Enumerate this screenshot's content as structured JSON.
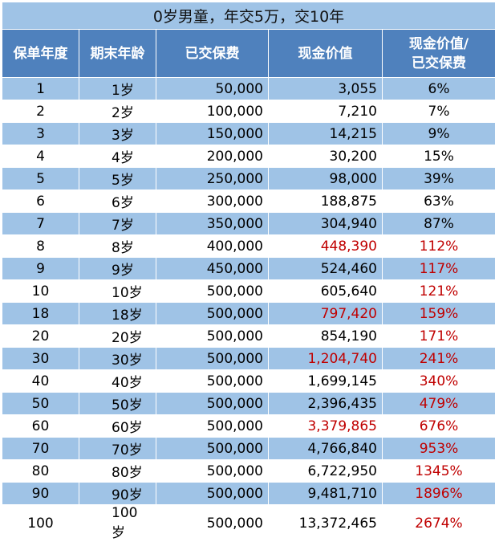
{
  "title": "0岁男童，年交5万，交10年",
  "headers": [
    "保单年度",
    "期末年龄",
    "已交保费",
    "现金价值",
    "现金价值/已交保费"
  ],
  "header_ratio_lines": [
    "现金价值/",
    "已交保费"
  ],
  "rows": [
    {
      "year": "1",
      "age": "1岁",
      "paid": "50,000",
      "cash": "3,055",
      "ratio": "6%",
      "cash_red": false,
      "ratio_red": false
    },
    {
      "year": "2",
      "age": "2岁",
      "paid": "100,000",
      "cash": "7,210",
      "ratio": "7%",
      "cash_red": false,
      "ratio_red": false
    },
    {
      "year": "3",
      "age": "3岁",
      "paid": "150,000",
      "cash": "14,215",
      "ratio": "9%",
      "cash_red": false,
      "ratio_red": false
    },
    {
      "year": "4",
      "age": "4岁",
      "paid": "200,000",
      "cash": "30,200",
      "ratio": "15%",
      "cash_red": false,
      "ratio_red": false
    },
    {
      "year": "5",
      "age": "5岁",
      "paid": "250,000",
      "cash": "98,000",
      "ratio": "39%",
      "cash_red": false,
      "ratio_red": false
    },
    {
      "year": "6",
      "age": "6岁",
      "paid": "300,000",
      "cash": "188,875",
      "ratio": "63%",
      "cash_red": false,
      "ratio_red": false
    },
    {
      "year": "7",
      "age": "7岁",
      "paid": "350,000",
      "cash": "304,940",
      "ratio": "87%",
      "cash_red": false,
      "ratio_red": false
    },
    {
      "year": "8",
      "age": "8岁",
      "paid": "400,000",
      "cash": "448,390",
      "ratio": "112%",
      "cash_red": true,
      "ratio_red": true
    },
    {
      "year": "9",
      "age": "9岁",
      "paid": "450,000",
      "cash": "524,460",
      "ratio": "117%",
      "cash_red": false,
      "ratio_red": true
    },
    {
      "year": "10",
      "age": "10岁",
      "paid": "500,000",
      "cash": "605,640",
      "ratio": "121%",
      "cash_red": false,
      "ratio_red": true
    },
    {
      "year": "18",
      "age": "18岁",
      "paid": "500,000",
      "cash": "797,420",
      "ratio": "159%",
      "cash_red": true,
      "ratio_red": true
    },
    {
      "year": "20",
      "age": "20岁",
      "paid": "500,000",
      "cash": "854,190",
      "ratio": "171%",
      "cash_red": false,
      "ratio_red": true
    },
    {
      "year": "30",
      "age": "30岁",
      "paid": "500,000",
      "cash": "1,204,740",
      "ratio": "241%",
      "cash_red": true,
      "ratio_red": true
    },
    {
      "year": "40",
      "age": "40岁",
      "paid": "500,000",
      "cash": "1,699,145",
      "ratio": "340%",
      "cash_red": false,
      "ratio_red": true
    },
    {
      "year": "50",
      "age": "50岁",
      "paid": "500,000",
      "cash": "2,396,435",
      "ratio": "479%",
      "cash_red": false,
      "ratio_red": true
    },
    {
      "year": "60",
      "age": "60岁",
      "paid": "500,000",
      "cash": "3,379,865",
      "ratio": "676%",
      "cash_red": true,
      "ratio_red": true
    },
    {
      "year": "70",
      "age": "70岁",
      "paid": "500,000",
      "cash": "4,766,840",
      "ratio": "953%",
      "cash_red": false,
      "ratio_red": true
    },
    {
      "year": "80",
      "age": "80岁",
      "paid": "500,000",
      "cash": "6,722,950",
      "ratio": "1345%",
      "cash_red": false,
      "ratio_red": true
    },
    {
      "year": "90",
      "age": "90岁",
      "paid": "500,000",
      "cash": "9,481,710",
      "ratio": "1896%",
      "cash_red": false,
      "ratio_red": true
    },
    {
      "year": "100",
      "age": "100岁",
      "paid": "500,000",
      "cash": "13,372,465",
      "ratio": "2674%",
      "cash_red": false,
      "ratio_red": true
    }
  ],
  "colors": {
    "header_bg": "#4f81bd",
    "band_bg": "#9fc3e6",
    "highlight_text": "#c00000"
  }
}
